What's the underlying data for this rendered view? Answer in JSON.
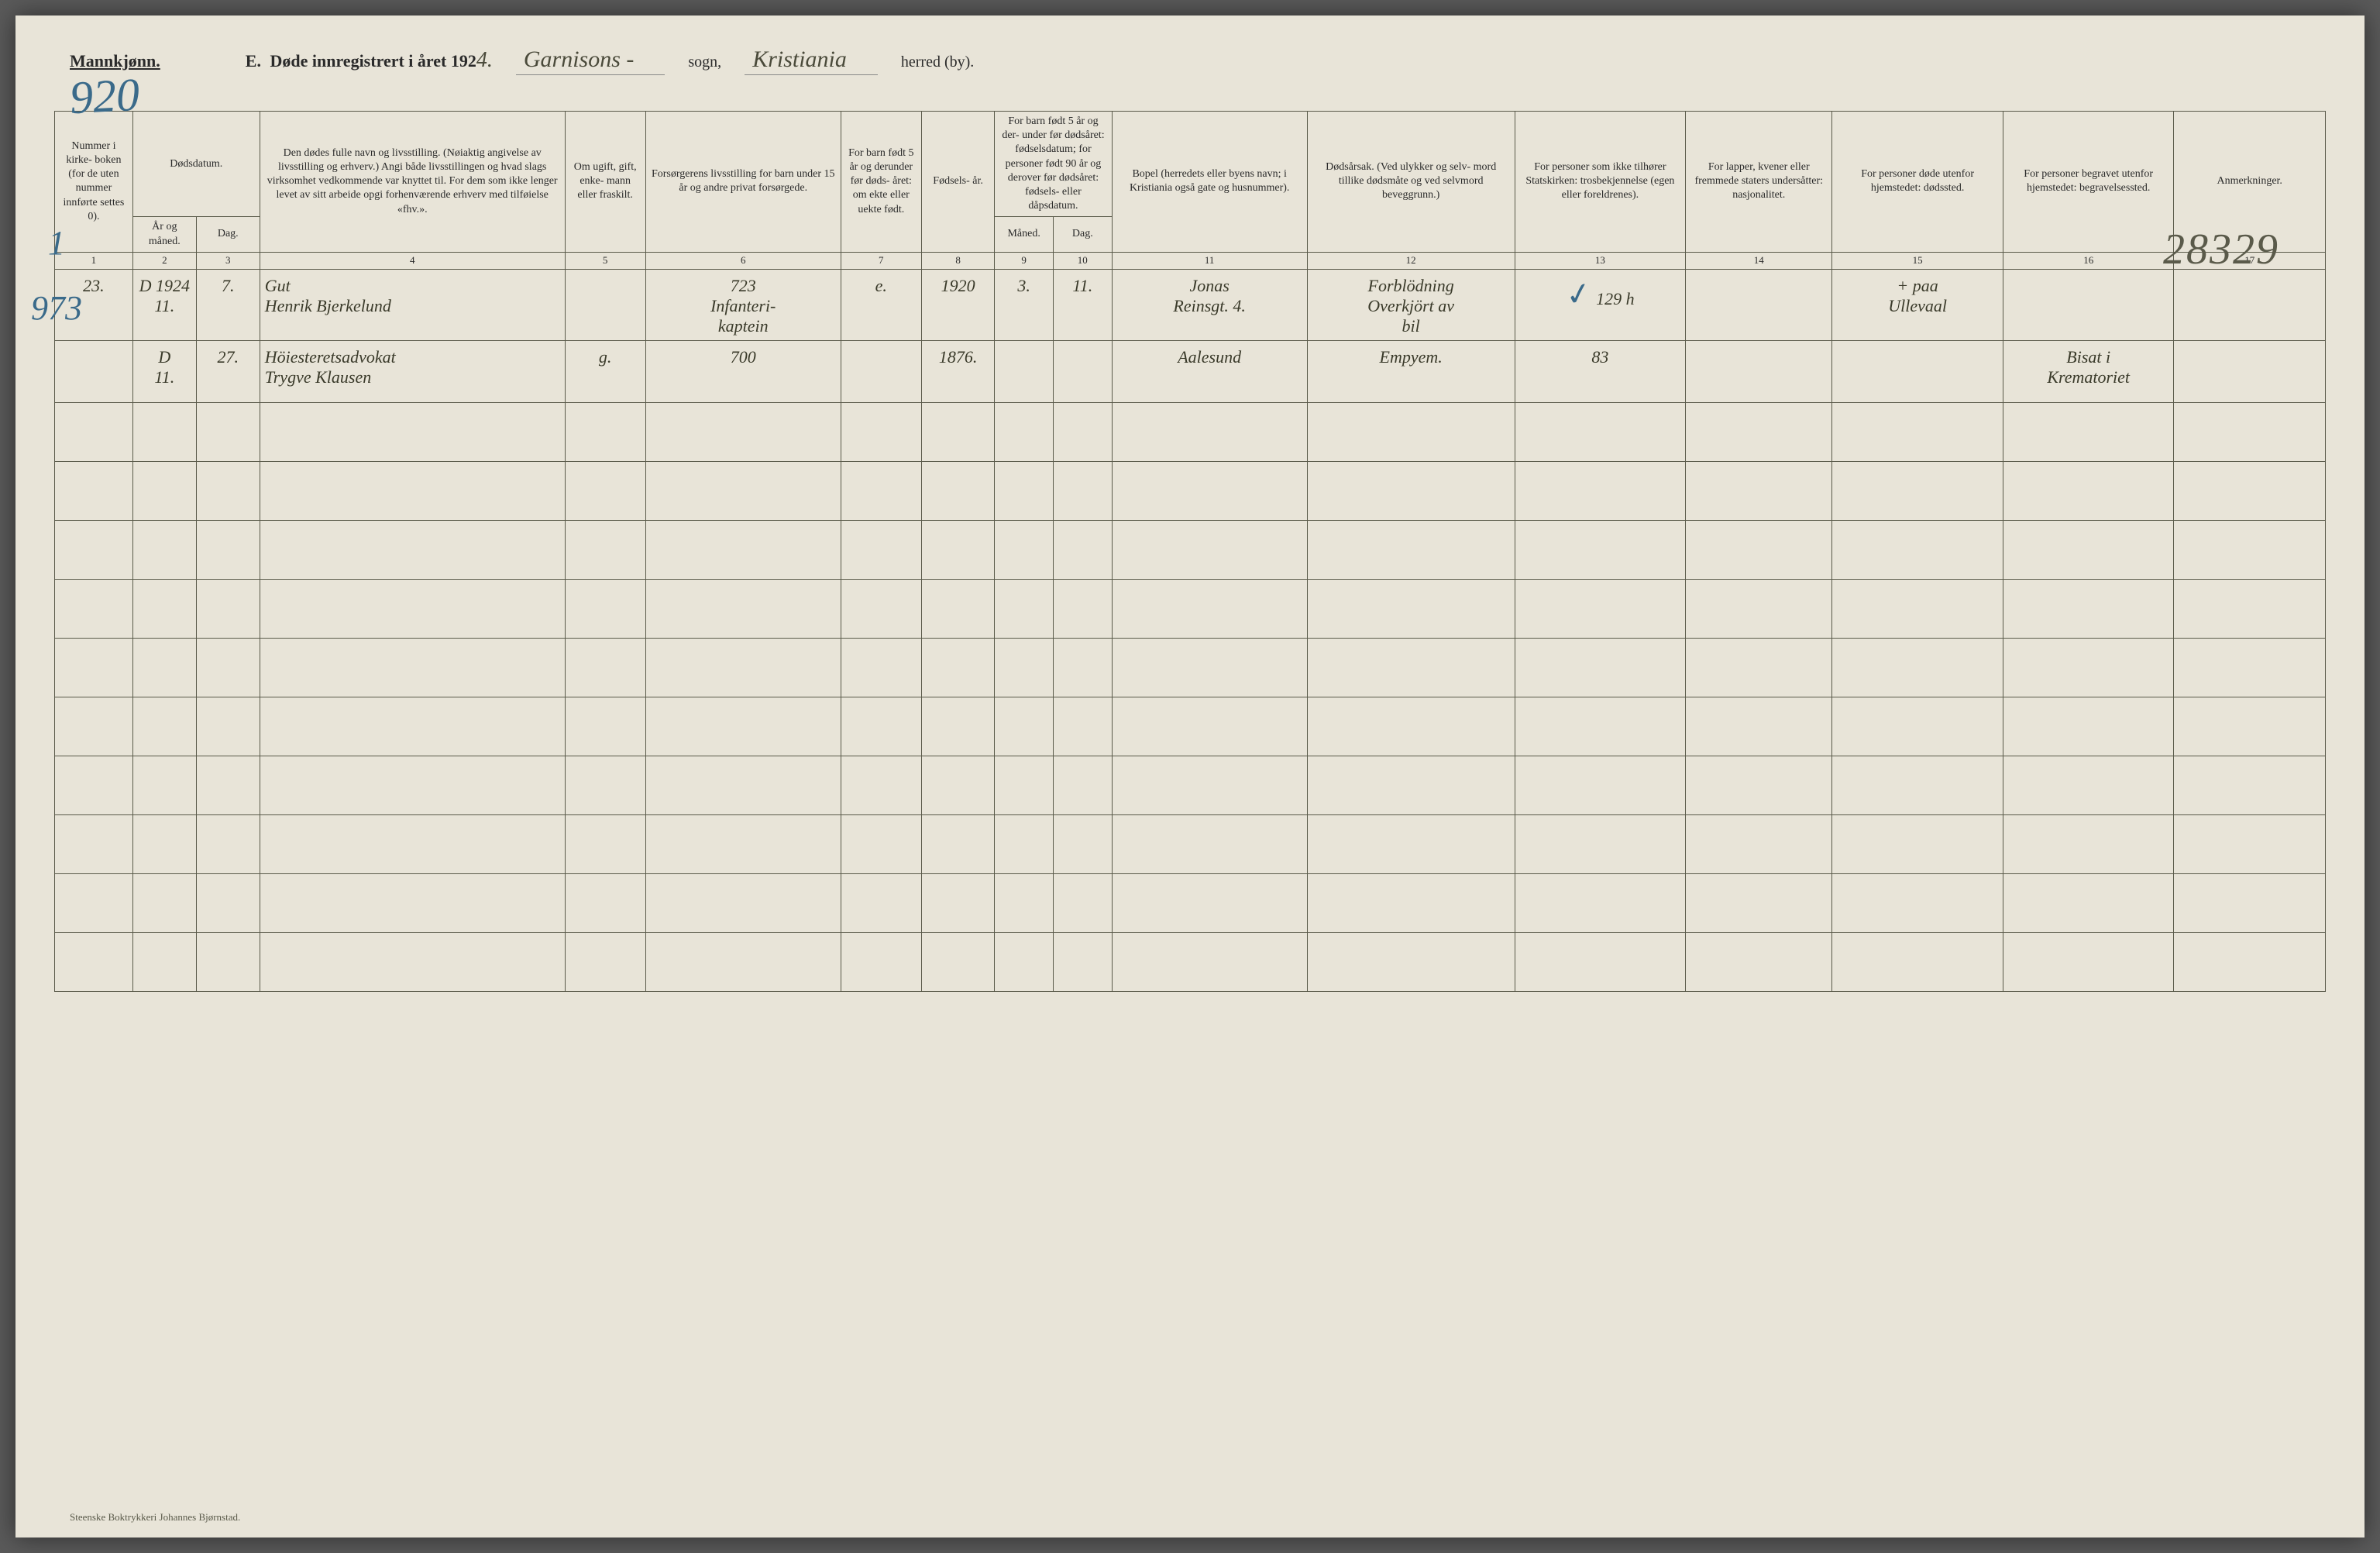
{
  "header": {
    "gender_label": "Mannkjønn.",
    "title_letter": "E.",
    "title_text": "Døde innregistrert i året 192",
    "year_suffix": "4.",
    "parish_cursive": "Garnisons -",
    "parish_label": "sogn,",
    "district_cursive": "Kristiania",
    "district_label": "herred (by)."
  },
  "page_number": "920",
  "row_markers": {
    "left1": "1",
    "left2": "973"
  },
  "stamp_number": "28329",
  "columns": {
    "c1": "Nummer i kirke- boken (for de uten nummer innførte settes 0).",
    "c2": "Dødsdatum.",
    "c2a": "År og måned.",
    "c2b": "Dag.",
    "c3": "Den dødes fulle navn og livsstilling. (Nøiaktig angivelse av livsstilling og erhverv.) Angi både livsstillingen og hvad slags virksomhet vedkommende var knyttet til. For dem som ikke lenger levet av sitt arbeide opgi forhenværende erhverv med tilføielse «fhv.».",
    "c4": "Om ugift, gift, enke- mann eller fraskilt.",
    "c5": "Forsørgerens livsstilling for barn under 15 år og andre privat forsørgede.",
    "c6": "For barn født 5 år og derunder før døds- året: om ekte eller uekte født.",
    "c7": "Fødsels- år.",
    "c8": "For barn født 5 år og der- under før dødsåret: fødselsdatum; for personer født 90 år og derover før dødsåret: fødsels- eller dåpsdatum.",
    "c8a": "Måned.",
    "c8b": "Dag.",
    "c9": "Bopel (herredets eller byens navn; i Kristiania også gate og husnummer).",
    "c10": "Dødsårsak. (Ved ulykker og selv- mord tillike dødsmåte og ved selvmord beveggrunn.)",
    "c11": "For personer som ikke tilhører Statskirken: trosbekjennelse (egen eller foreldrenes).",
    "c12": "For lapper, kvener eller fremmede staters undersåtter: nasjonalitet.",
    "c13": "For personer døde utenfor hjemstedet: dødssted.",
    "c14": "For personer begravet utenfor hjemstedet: begravelsessted.",
    "c15": "Anmerkninger."
  },
  "colnums": [
    "1",
    "2",
    "3",
    "4",
    "5",
    "6",
    "7",
    "8",
    "9",
    "10",
    "11",
    "12",
    "13",
    "14",
    "15",
    "16",
    "17"
  ],
  "rows": [
    {
      "num": "23.",
      "year_month_prefix": "D 1924",
      "year_month": "11.",
      "day": "7.",
      "name": "Gut\nHenrik Bjerkelund",
      "marital": "",
      "provider": "723\nInfanteri-\nkaptein",
      "legit": "e.",
      "birth_year": "1920",
      "birth_month": "3.",
      "birth_day": "11.",
      "residence": "Jonas\nReinsgt. 4.",
      "cause": "Forblödning\nOverkjört av\nbil",
      "confession_check": "✓",
      "confession": "129 h",
      "nationality": "",
      "death_place": "+ paa\nUllevaal",
      "burial_place": "",
      "remarks": ""
    },
    {
      "num": "",
      "year_month_prefix": "D",
      "year_month": "11.",
      "day": "27.",
      "name": "Höiesteretsadvokat\nTrygve Klausen",
      "marital": "g.",
      "provider": "700",
      "legit": "",
      "birth_year": "1876.",
      "birth_month": "",
      "birth_day": "",
      "residence": "Aalesund",
      "cause": "Empyem.",
      "confession_check": "",
      "confession": "83",
      "nationality": "",
      "death_place": "",
      "burial_place": "Bisat i\nKrematoriet",
      "remarks": ""
    }
  ],
  "empty_row_count": 10,
  "footer_imprint": "Steenske Boktrykkeri Johannes Bjørnstad."
}
